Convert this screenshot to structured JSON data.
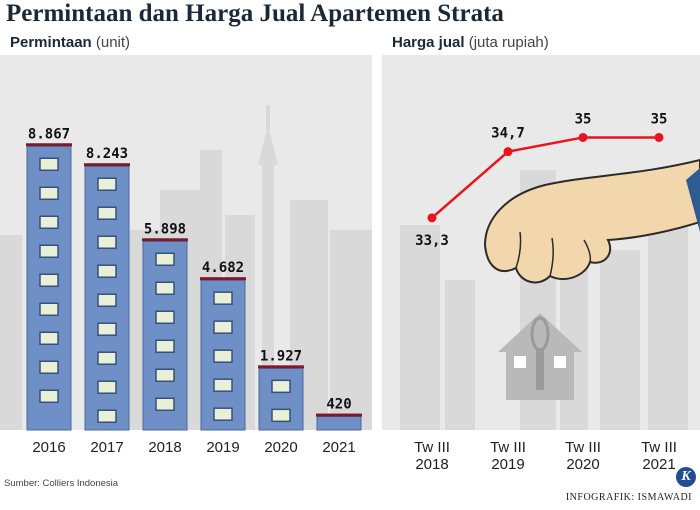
{
  "title": "Permintaan dan Harga Jual Apartemen Strata",
  "left_subtitle": {
    "main": "Permintaan",
    "unit": "(unit)"
  },
  "right_subtitle": {
    "main": "Harga jual",
    "unit": "(juta rupiah)"
  },
  "source": "Sumber: Colliers Indonesia",
  "credit": "INFOGRAFIK: ISMAWADI",
  "logo_letter": "K",
  "colors": {
    "bar": "#6f8fc7",
    "bar_edge": "#4c6aa0",
    "bar_top": "#7a1a2a",
    "line": "#e8141e",
    "panel": "#e9e9e9",
    "skyline": "#d8d8d8"
  },
  "chart_data": [
    {
      "type": "bar",
      "title": "Permintaan",
      "ylabel": "(unit)",
      "categories": [
        "2016",
        "2017",
        "2018",
        "2019",
        "2020",
        "2021"
      ],
      "values": [
        8867,
        8243,
        5898,
        4682,
        1927,
        420
      ],
      "value_labels": [
        "8.867",
        "8.243",
        "5.898",
        "4.682",
        "1.927",
        "420"
      ],
      "ylim": [
        0,
        10000
      ],
      "grid": false
    },
    {
      "type": "line",
      "title": "Harga jual",
      "ylabel": "(juta rupiah)",
      "categories": [
        "Tw III\n2018",
        "Tw III\n2019",
        "Tw III\n2020",
        "Tw III\n2021"
      ],
      "category_lines": [
        [
          "Tw III",
          "2018"
        ],
        [
          "Tw III",
          "2019"
        ],
        [
          "Tw III",
          "2020"
        ],
        [
          "Tw III",
          "2021"
        ]
      ],
      "values": [
        33.3,
        34.7,
        35,
        35
      ],
      "value_labels": [
        "33,3",
        "34,7",
        "35",
        "35"
      ],
      "grid": false
    }
  ]
}
